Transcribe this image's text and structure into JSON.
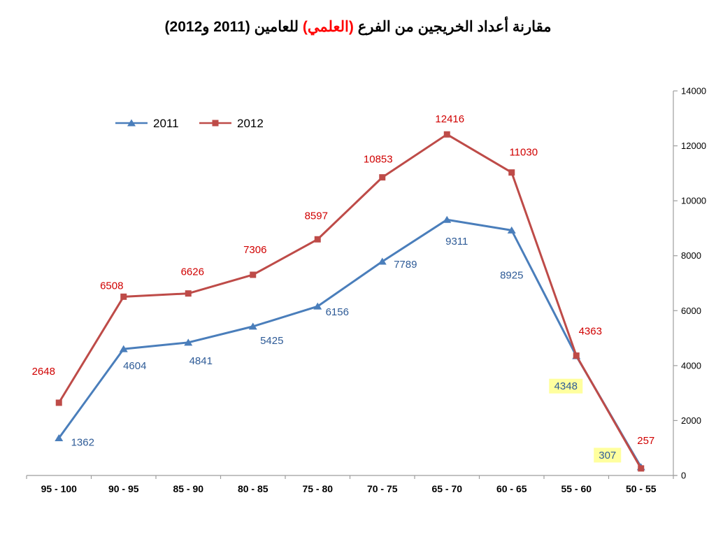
{
  "title": {
    "part1": "مقارنة أعداد الخريجين من الفرع ",
    "highlight": "(العلمي)",
    "part2": " للعامين (2011 و2012)",
    "highlight_color": "#FF0000"
  },
  "chart_data": {
    "type": "line",
    "title": "مقارنة أعداد الخريجين من الفرع (العلمي) للعامين (2011 و2012)",
    "categories": [
      "95 - 100",
      "90 - 95",
      "85 - 90",
      "80 - 85",
      "75 - 80",
      "70 - 75",
      "65 - 70",
      "60 - 65",
      "55 - 60",
      "50 - 55"
    ],
    "series": [
      {
        "name": "2011",
        "marker": "triangle",
        "color": "#4A7EBB",
        "label_color": "#2E5B97",
        "values": [
          1362,
          4604,
          4841,
          5425,
          6156,
          7789,
          9311,
          8925,
          4348,
          307
        ],
        "highlighted_indices": [
          8,
          9
        ],
        "label_offsets": [
          [
            34,
            6
          ],
          [
            16,
            24
          ],
          [
            18,
            26
          ],
          [
            27,
            20
          ],
          [
            28,
            8
          ],
          [
            33,
            4
          ],
          [
            14,
            31
          ],
          [
            0,
            64
          ],
          [
            -15,
            43
          ],
          [
            -48,
            -17
          ]
        ]
      },
      {
        "name": "2012",
        "marker": "square",
        "color": "#BE4B48",
        "label_color": "#D00000",
        "values": [
          2648,
          6508,
          6626,
          7306,
          8597,
          10853,
          12416,
          11030,
          4363,
          257
        ],
        "highlighted_indices": [],
        "label_offsets": [
          [
            -22,
            -45
          ],
          [
            -17,
            -16
          ],
          [
            6,
            -31
          ],
          [
            3,
            -36
          ],
          [
            -2,
            -34
          ],
          [
            -6,
            -26
          ],
          [
            4,
            -22
          ],
          [
            17,
            -29
          ],
          [
            20,
            -35
          ],
          [
            7,
            -40
          ]
        ]
      }
    ],
    "ylim": [
      0,
      14000
    ],
    "yticks": [
      0,
      2000,
      4000,
      6000,
      8000,
      10000,
      12000,
      14000
    ],
    "grid": false,
    "legend_position": "top-left",
    "y_axis_side": "right",
    "highlight_color": "#FFFF9E",
    "axis_color": "#9E9E9E"
  }
}
